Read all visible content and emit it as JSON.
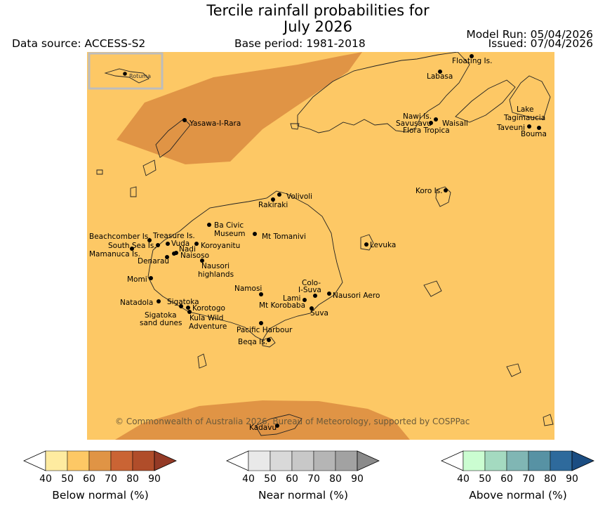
{
  "header": {
    "title_line1": "Tercile rainfall probabilities for",
    "title_line2": "July 2026",
    "data_source": "Data source: ACCESS-S2",
    "base_period": "Base period: 1981-2018",
    "model_run": "Model Run: 05/04/2026",
    "issued": "Issued: 07/04/2026"
  },
  "map": {
    "copyright": "© Commonwealth of Australia 2026, Bureau of Meteorology, supported by COSPPac",
    "inset_label": "Rotuma",
    "colors": {
      "land_base": "#fdc865",
      "band_60_70": "#e09445",
      "coast": "#222222",
      "inset_frame": "#bdbdbd"
    },
    "places": [
      {
        "name": "Floating Is."
      },
      {
        "name": "Labasa"
      },
      {
        "name": "Yasawa-I-Rara"
      },
      {
        "name": "Nawi Is."
      },
      {
        "name": "Savusavu"
      },
      {
        "name": "Waisali"
      },
      {
        "name": "Flora Tropica"
      },
      {
        "name": "Lake"
      },
      {
        "name": "Tagimaucia"
      },
      {
        "name": "Taveuni"
      },
      {
        "name": "Bouma"
      },
      {
        "name": "Koro Is."
      },
      {
        "name": "Volivoli"
      },
      {
        "name": "Rakiraki"
      },
      {
        "name": "Ba Civic"
      },
      {
        "name": "Museum"
      },
      {
        "name": "Mt Tomanivi"
      },
      {
        "name": "Beachcomber Is."
      },
      {
        "name": "Treasure Is."
      },
      {
        "name": "South Sea Is."
      },
      {
        "name": "Vuda"
      },
      {
        "name": "Koroyanitu"
      },
      {
        "name": "Nadi"
      },
      {
        "name": "Mamanuca Is."
      },
      {
        "name": "Naisoso"
      },
      {
        "name": "Denarau"
      },
      {
        "name": "Nausori"
      },
      {
        "name": "highlands"
      },
      {
        "name": "Levuka"
      },
      {
        "name": "Momi"
      },
      {
        "name": "Colo-"
      },
      {
        "name": "I-Suva"
      },
      {
        "name": "Namosi"
      },
      {
        "name": "Nausori Aero"
      },
      {
        "name": "Lami"
      },
      {
        "name": "Natadola"
      },
      {
        "name": "Sigatoka"
      },
      {
        "name": "Mt Korobaba"
      },
      {
        "name": "Korotogo"
      },
      {
        "name": "Suva"
      },
      {
        "name": "Sigatoka"
      },
      {
        "name": "Kula Wild"
      },
      {
        "name": "sand dunes"
      },
      {
        "name": "Adventure"
      },
      {
        "name": "Pacific Harbour"
      },
      {
        "name": "Beqa Is."
      },
      {
        "name": "Kadavu"
      }
    ]
  },
  "colorbars": [
    {
      "label": "Below normal (%)",
      "ticks": [
        "40",
        "50",
        "60",
        "70",
        "80",
        "90"
      ],
      "colors": [
        "#ffffff",
        "#feeba0",
        "#fdc865",
        "#e09445",
        "#ca6434",
        "#b04d2a",
        "#943a26"
      ]
    },
    {
      "label": "Near normal (%)",
      "ticks": [
        "40",
        "50",
        "60",
        "70",
        "80",
        "90"
      ],
      "colors": [
        "#ffffff",
        "#e9e9e9",
        "#d9d9d9",
        "#c8c8c8",
        "#b5b5b5",
        "#a2a2a2",
        "#8a8a8a"
      ]
    },
    {
      "label": "Above normal (%)",
      "ticks": [
        "40",
        "50",
        "60",
        "70",
        "80",
        "90"
      ],
      "colors": [
        "#ffffff",
        "#cbfdd1",
        "#a4dac0",
        "#80b6b4",
        "#5792a4",
        "#2e6a9c",
        "#1b4d82"
      ]
    }
  ]
}
